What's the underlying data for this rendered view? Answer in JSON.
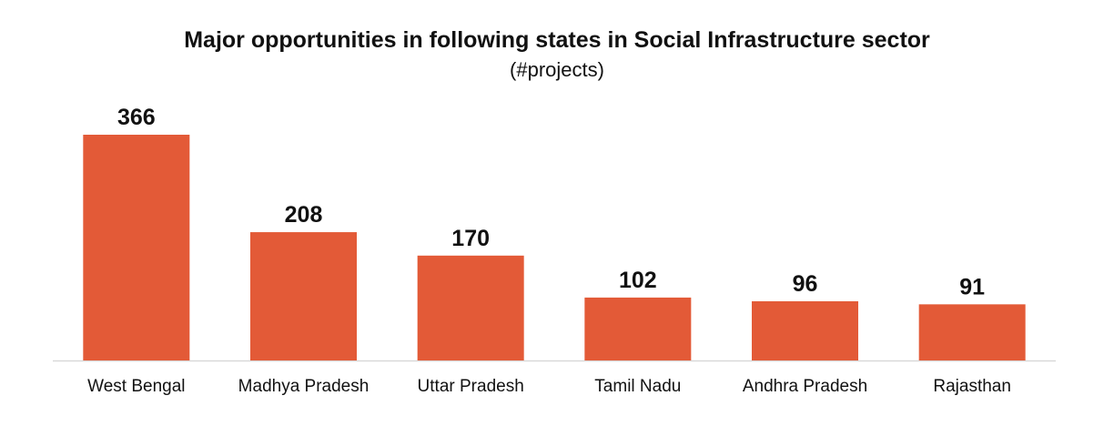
{
  "chart_data": {
    "type": "bar",
    "title": "Major opportunities in following states in Social Infrastructure sector",
    "subtitle": "(#projects)",
    "xlabel": "",
    "ylabel": "",
    "categories": [
      "West Bengal",
      "Madhya Pradesh",
      "Uttar Pradesh",
      "Tamil Nadu",
      "Andhra Pradesh",
      "Rajasthan"
    ],
    "values": [
      366,
      208,
      170,
      102,
      96,
      91
    ],
    "ylim": [
      0,
      366
    ],
    "grid": false,
    "legend": "none",
    "bar_color": "#E35A37",
    "axis_color": "#D9D9D9"
  }
}
